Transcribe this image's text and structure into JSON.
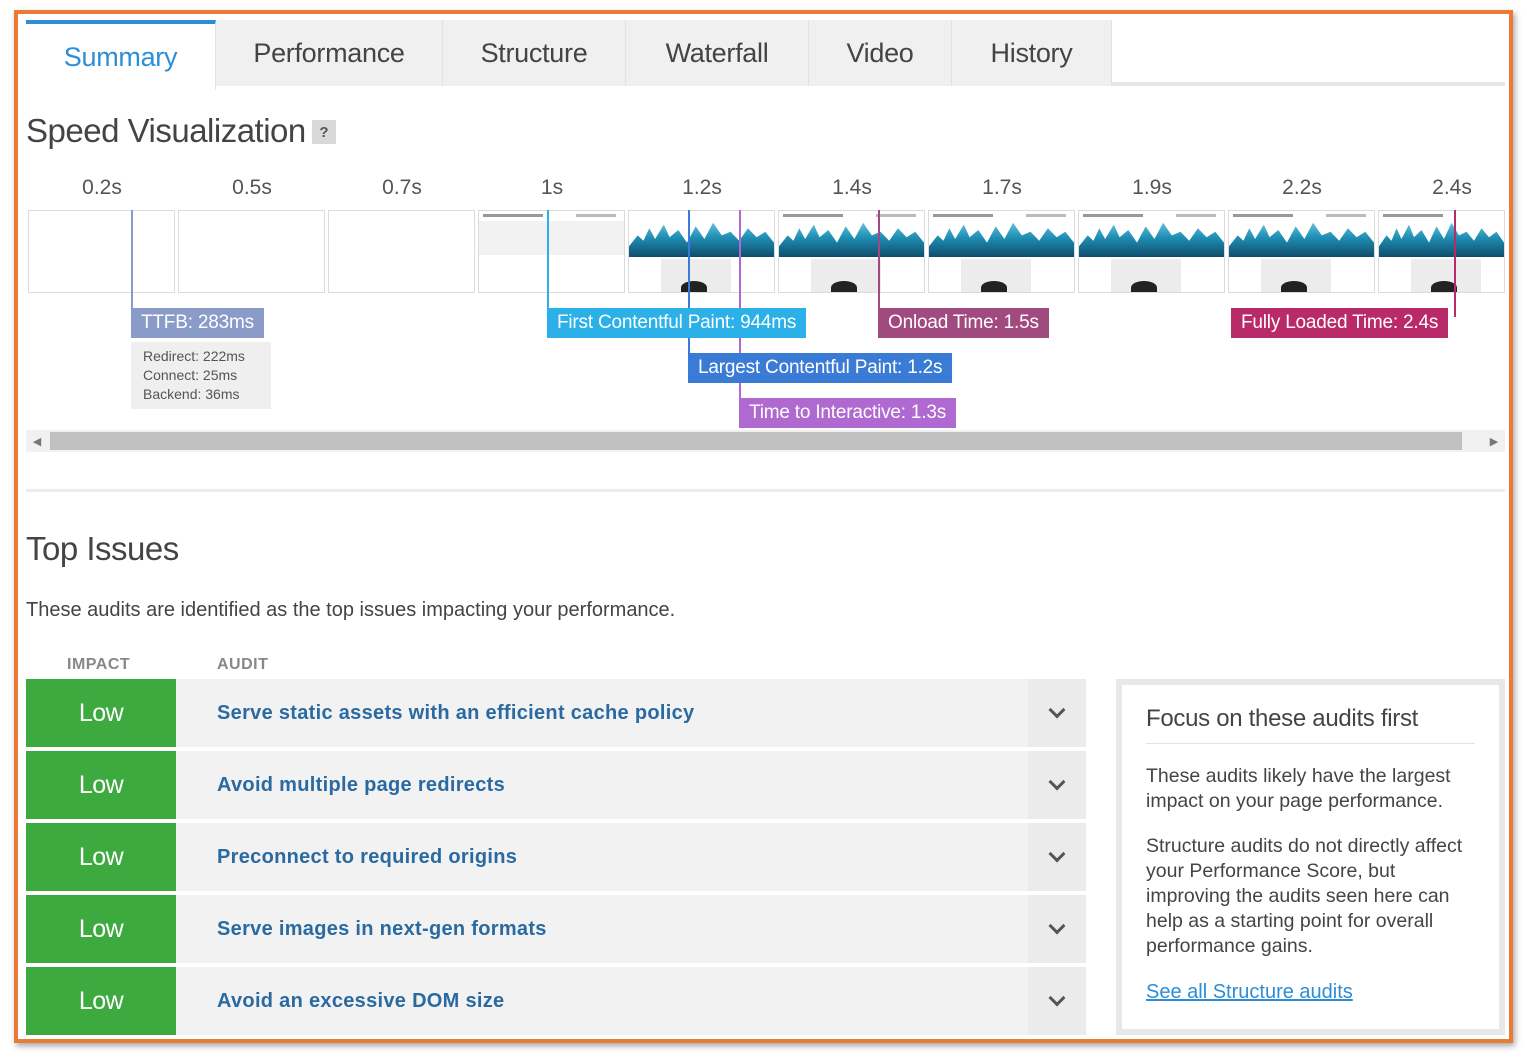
{
  "tabs": [
    {
      "label": "Summary",
      "active": true
    },
    {
      "label": "Performance"
    },
    {
      "label": "Structure"
    },
    {
      "label": "Waterfall"
    },
    {
      "label": "Video"
    },
    {
      "label": "History"
    }
  ],
  "speed": {
    "title": "Speed Visualization",
    "help": "?",
    "ticks": [
      "0.2s",
      "0.5s",
      "0.7s",
      "1s",
      "1.2s",
      "1.4s",
      "1.7s",
      "1.9s",
      "2.2s",
      "2.4s"
    ],
    "metrics": {
      "ttfb": {
        "label": "TTFB: 283ms",
        "color": "#8a9bc8"
      },
      "ttfb_detail": {
        "redirect": "Redirect: 222ms",
        "connect": "Connect: 25ms",
        "backend": "Backend: 36ms"
      },
      "fcp": {
        "label": "First Contentful Paint: 944ms",
        "color": "#2bb1e8"
      },
      "lcp": {
        "label": "Largest Contentful Paint: 1.2s",
        "color": "#3a7bd5"
      },
      "tti": {
        "label": "Time to Interactive: 1.3s",
        "color": "#b069d0"
      },
      "onload": {
        "label": "Onload Time: 1.5s",
        "color": "#a14a7f"
      },
      "fully": {
        "label": "Fully Loaded Time: 2.4s",
        "color": "#b82a68"
      }
    }
  },
  "issues": {
    "title": "Top Issues",
    "description": "These audits are identified as the top issues impacting your performance.",
    "col_impact": "IMPACT",
    "col_audit": "AUDIT",
    "rows": [
      {
        "impact": "Low",
        "audit": "Serve static assets with an efficient cache policy"
      },
      {
        "impact": "Low",
        "audit": "Avoid multiple page redirects"
      },
      {
        "impact": "Low",
        "audit": "Preconnect to required origins"
      },
      {
        "impact": "Low",
        "audit": "Serve images in next-gen formats"
      },
      {
        "impact": "Low",
        "audit": "Avoid an excessive DOM size"
      }
    ],
    "impact_color": "#3daa3f"
  },
  "focus": {
    "title": "Focus on these audits first",
    "p1": "These audits likely have the largest impact on your page performance.",
    "p2": "Structure audits do not directly affect your Performance Score, but improving the audits seen here can help as a starting point for overall performance gains.",
    "link": "See all Structure audits"
  },
  "colors": {
    "accent": "#2c8ed6",
    "frame": "#ec7a37"
  }
}
